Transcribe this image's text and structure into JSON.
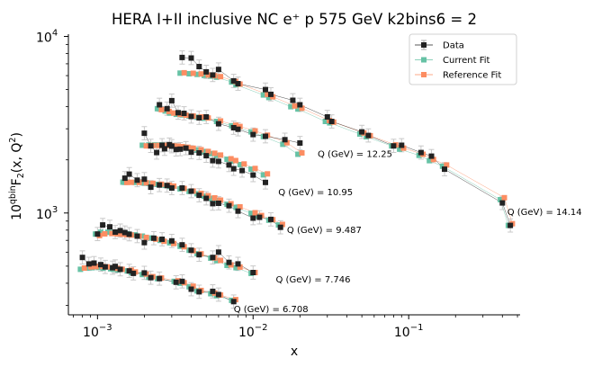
{
  "chart_data": {
    "type": "scatter",
    "title": "HERA I+II inclusive NC e⁺ p 575 GeV k2bins6 = 2",
    "xlabel": "x",
    "ylabel": "10^qbin F₂(x, Q²)",
    "ylabel_parts": {
      "base": "10",
      "exp": "qbin",
      "main": "F",
      "sub": "2",
      "paren": "(x, Q",
      "sq": "2",
      "close": ")"
    },
    "xscale": "log",
    "yscale": "log",
    "xlim": [
      0.00065,
      0.52
    ],
    "ylim": [
      265,
      10300
    ],
    "x_ticks": [
      {
        "value": 0.001,
        "base": "10",
        "exp": "−3"
      },
      {
        "value": 0.01,
        "base": "10",
        "exp": "−2"
      },
      {
        "value": 0.1,
        "base": "10",
        "exp": "−1"
      }
    ],
    "y_ticks": [
      {
        "value": 1000,
        "base": "10",
        "exp": "3"
      },
      {
        "value": 10000,
        "base": "10",
        "exp": "4"
      }
    ],
    "grid": false,
    "legend_position": "top-right",
    "legend": [
      {
        "label": "Data",
        "color": "#222222",
        "marker": "square",
        "errorbar": true
      },
      {
        "label": "Current Fit",
        "color": "#66c2a5",
        "marker": "square",
        "errorbar": false
      },
      {
        "label": "Reference Fit",
        "color": "#fc8d62",
        "marker": "square",
        "errorbar": false
      }
    ],
    "colors": {
      "data": "#222222",
      "current": "#66c2a5",
      "reference": "#fc8d62",
      "errorbar": "#c8c8c8"
    },
    "groups": [
      {
        "label": "Q (GeV) = 6.708",
        "label_at": [
          0.0075,
          275
        ],
        "x": [
          0.0008,
          0.00088,
          0.00095,
          0.00105,
          0.00112,
          0.00125,
          0.0013,
          0.0014,
          0.0016,
          0.0017,
          0.002,
          0.0022,
          0.0025,
          0.0032,
          0.0035,
          0.004,
          0.0045,
          0.0055,
          0.006,
          0.0075
        ],
        "data": [
          560,
          515,
          520,
          510,
          495,
          490,
          498,
          480,
          470,
          455,
          458,
          430,
          425,
          405,
          410,
          370,
          358,
          360,
          345,
          315
        ],
        "current": [
          480,
          488,
          490,
          492,
          487,
          483,
          480,
          476,
          470,
          460,
          448,
          432,
          425,
          410,
          400,
          382,
          362,
          349,
          340,
          320
        ],
        "reference": [
          488,
          495,
          497,
          498,
          495,
          490,
          486,
          480,
          474,
          464,
          451,
          436,
          428,
          413,
          403,
          385,
          364,
          352,
          343,
          323
        ]
      },
      {
        "label": "Q (GeV) = 7.746",
        "label_at": [
          0.014,
          405
        ],
        "x": [
          0.001,
          0.00108,
          0.0012,
          0.0013,
          0.0014,
          0.0015,
          0.0016,
          0.0018,
          0.002,
          0.0023,
          0.0026,
          0.003,
          0.0035,
          0.004,
          0.0045,
          0.0055,
          0.006,
          0.007,
          0.008,
          0.01
        ],
        "data": [
          760,
          855,
          835,
          780,
          795,
          775,
          758,
          740,
          680,
          720,
          710,
          695,
          660,
          615,
          580,
          560,
          600,
          525,
          515,
          460
        ],
        "current": [
          760,
          778,
          778,
          775,
          770,
          766,
          762,
          752,
          740,
          722,
          700,
          678,
          648,
          615,
          588,
          555,
          537,
          505,
          490,
          455
        ],
        "reference": [
          745,
          762,
          765,
          762,
          758,
          754,
          750,
          740,
          728,
          712,
          692,
          672,
          644,
          612,
          587,
          556,
          539,
          508,
          494,
          460
        ]
      },
      {
        "label": "Q (GeV) = 9.487",
        "label_at": [
          0.0165,
          770
        ],
        "x": [
          0.0015,
          0.0016,
          0.0018,
          0.002,
          0.0022,
          0.0025,
          0.0028,
          0.003,
          0.0035,
          0.004,
          0.0045,
          0.005,
          0.0055,
          0.006,
          0.007,
          0.008,
          0.01,
          0.011,
          0.013,
          0.015
        ],
        "data": [
          1575,
          1660,
          1535,
          1555,
          1400,
          1440,
          1430,
          1385,
          1385,
          1330,
          1260,
          1210,
          1130,
          1135,
          1100,
          1025,
          935,
          945,
          920,
          830
        ],
        "current": [
          1495,
          1495,
          1490,
          1483,
          1470,
          1452,
          1433,
          1415,
          1370,
          1325,
          1285,
          1245,
          1210,
          1175,
          1120,
          1075,
          995,
          960,
          910,
          855
        ],
        "reference": [
          1490,
          1492,
          1490,
          1483,
          1472,
          1456,
          1438,
          1420,
          1376,
          1332,
          1292,
          1253,
          1218,
          1183,
          1128,
          1083,
          1003,
          968,
          917,
          862
        ]
      },
      {
        "label": "Q (GeV) = 10.95",
        "label_at": [
          0.0145,
          1265
        ],
        "x": [
          0.002,
          0.0022,
          0.0024,
          0.0026,
          0.0027,
          0.0029,
          0.003,
          0.0032,
          0.0034,
          0.0037,
          0.004,
          0.0045,
          0.005,
          0.0055,
          0.006,
          0.007,
          0.0075,
          0.0085,
          0.01,
          0.012
        ],
        "data": [
          2830,
          2400,
          2200,
          2420,
          2310,
          2440,
          2390,
          2290,
          2300,
          2330,
          2210,
          2190,
          2110,
          1980,
          1960,
          1870,
          1780,
          1740,
          1640,
          1490
        ],
        "current": [
          2420,
          2428,
          2430,
          2428,
          2424,
          2415,
          2410,
          2398,
          2384,
          2360,
          2330,
          2278,
          2225,
          2170,
          2118,
          2015,
          1968,
          1880,
          1770,
          1645
        ],
        "reference": [
          2400,
          2410,
          2414,
          2414,
          2412,
          2405,
          2400,
          2390,
          2378,
          2356,
          2328,
          2280,
          2230,
          2178,
          2128,
          2028,
          1982,
          1896,
          1788,
          1665
        ]
      },
      {
        "label": "Q (GeV) = 12.25",
        "label_at": [
          0.026,
          2080
        ],
        "x": [
          0.0025,
          0.0028,
          0.003,
          0.0033,
          0.0036,
          0.004,
          0.0045,
          0.005,
          0.006,
          0.0075,
          0.008,
          0.01,
          0.012,
          0.016,
          0.02
        ],
        "data": [
          4100,
          3900,
          4330,
          3700,
          3670,
          3520,
          3460,
          3500,
          3200,
          3040,
          2980,
          2780,
          2720,
          2600,
          2490
        ],
        "current": [
          3900,
          3780,
          3680,
          3620,
          3590,
          3540,
          3490,
          3440,
          3300,
          3120,
          3060,
          2880,
          2710,
          2450,
          2150
        ],
        "reference": [
          3850,
          3760,
          3680,
          3620,
          3580,
          3540,
          3500,
          3450,
          3320,
          3140,
          3090,
          2920,
          2760,
          2500,
          2190
        ]
      },
      {
        "label": "Q (GeV) = 14.14",
        "label_at": [
          0.43,
          975
        ],
        "x": [
          0.0035,
          0.004,
          0.0045,
          0.005,
          0.0055,
          0.006,
          0.0075,
          0.008,
          0.012,
          0.013,
          0.018,
          0.02,
          0.03,
          0.032,
          0.05,
          0.055,
          0.08,
          0.09,
          0.12,
          0.14,
          0.17,
          0.4,
          0.45
        ],
        "data": [
          7600,
          7550,
          6750,
          6300,
          6050,
          6500,
          5600,
          5400,
          5000,
          4700,
          4350,
          4100,
          3500,
          3300,
          2880,
          2750,
          2400,
          2420,
          2200,
          2100,
          1770,
          1140,
          850
        ],
        "current": [
          6200,
          6150,
          6100,
          6020,
          5960,
          5880,
          5520,
          5330,
          4660,
          4510,
          4000,
          3880,
          3300,
          3240,
          2800,
          2700,
          2400,
          2300,
          2120,
          1980,
          1840,
          1190,
          850
        ],
        "reference": [
          6230,
          6180,
          6130,
          6050,
          5990,
          5920,
          5560,
          5370,
          4700,
          4550,
          4040,
          3920,
          3340,
          3270,
          2840,
          2740,
          2430,
          2330,
          2150,
          2010,
          1870,
          1220,
          870
        ]
      }
    ]
  }
}
